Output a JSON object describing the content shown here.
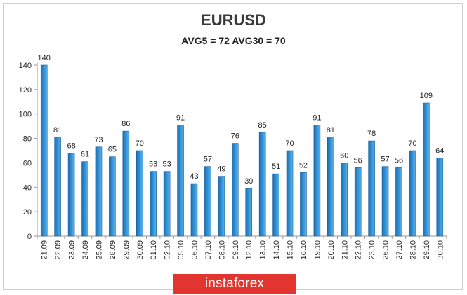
{
  "chart_data": {
    "type": "bar",
    "title": "EURUSD",
    "subtitle": "AVG5 = 72 AVG30 = 70",
    "categories": [
      "21.09",
      "22.09",
      "23.09",
      "24.09",
      "25.09",
      "28.09",
      "29.09",
      "30.09",
      "01.10",
      "02.10",
      "05.10",
      "06.10",
      "07.10",
      "08.10",
      "09.10",
      "12.10",
      "13.10",
      "14.10",
      "15.10",
      "16.10",
      "19.10",
      "20.10",
      "21.10",
      "22.10",
      "23.10",
      "26.10",
      "27.10",
      "28.10",
      "29.10",
      "30.10"
    ],
    "values": [
      140,
      81,
      68,
      61,
      73,
      65,
      86,
      70,
      53,
      53,
      91,
      43,
      57,
      49,
      76,
      39,
      85,
      51,
      70,
      52,
      91,
      81,
      60,
      56,
      78,
      57,
      56,
      70,
      109,
      64
    ],
    "yticks": [
      0,
      20,
      40,
      60,
      80,
      100,
      120,
      140
    ],
    "ylim": [
      0,
      140
    ],
    "grid": false,
    "bar_color": "#2e8fd4"
  },
  "watermark": "instaforex"
}
